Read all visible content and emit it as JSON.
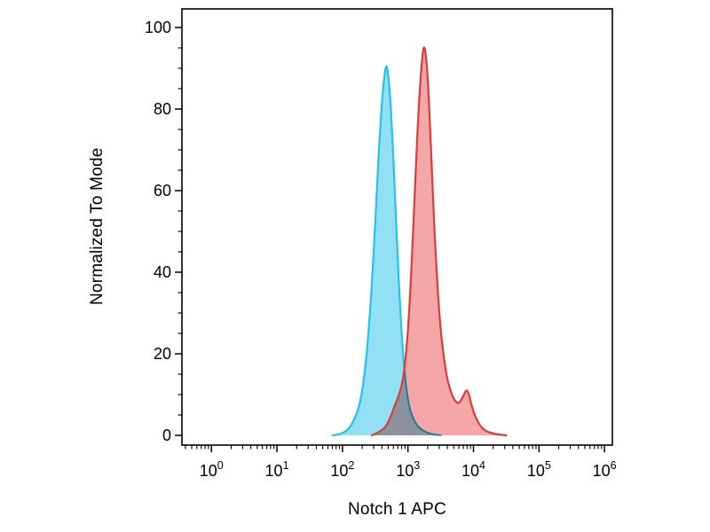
{
  "figure": {
    "background": "#ffffff",
    "description": "Flow cytometry overlay histogram"
  },
  "chart_data": {
    "type": "area",
    "chart_kind": "flow-cytometry-histogram",
    "title": "",
    "xlabel": "Notch 1 APC",
    "ylabel": "Normalized To Mode",
    "x_scale": "log10",
    "xlim_log": [
      -0.45,
      6.12
    ],
    "x_major_tick_exponents": [
      0,
      1,
      2,
      3,
      4,
      5,
      6
    ],
    "x_tick_label_base": "10",
    "ylim": [
      0,
      100
    ],
    "y_major_ticks": [
      0,
      20,
      40,
      60,
      80,
      100
    ],
    "y_minor_step": 5,
    "grid": false,
    "legend": "none",
    "frame_color": "#000000",
    "series": [
      {
        "name": "cyan-control",
        "stroke": "#25c3e8",
        "fill": "#8bdef2",
        "fill_opacity": 0.95,
        "peak": {
          "x_log10": 2.67,
          "x_value": 470,
          "y": 90
        },
        "points_log10x_y": [
          [
            1.85,
            0
          ],
          [
            1.95,
            0.3
          ],
          [
            2.05,
            1
          ],
          [
            2.15,
            3
          ],
          [
            2.25,
            7
          ],
          [
            2.32,
            13
          ],
          [
            2.38,
            22
          ],
          [
            2.44,
            35
          ],
          [
            2.5,
            52
          ],
          [
            2.55,
            68
          ],
          [
            2.6,
            81
          ],
          [
            2.64,
            88
          ],
          [
            2.67,
            90.5
          ],
          [
            2.7,
            88
          ],
          [
            2.74,
            80
          ],
          [
            2.78,
            67
          ],
          [
            2.82,
            52
          ],
          [
            2.86,
            38
          ],
          [
            2.9,
            26
          ],
          [
            2.94,
            17
          ],
          [
            2.98,
            11
          ],
          [
            3.03,
            6.5
          ],
          [
            3.1,
            3.5
          ],
          [
            3.2,
            1.5
          ],
          [
            3.35,
            0.4
          ],
          [
            3.5,
            0
          ]
        ]
      },
      {
        "name": "red-stained",
        "stroke": "#da3b3b",
        "fill": "#f49c9c",
        "fill_opacity": 0.9,
        "blend": "multiply",
        "peak": {
          "x_log10": 3.24,
          "x_value": 1740,
          "y": 95
        },
        "secondary_peak": {
          "x_log10": 3.89,
          "x_value": 7800,
          "y": 11
        },
        "points_log10x_y": [
          [
            2.45,
            0
          ],
          [
            2.55,
            0.8
          ],
          [
            2.65,
            2
          ],
          [
            2.72,
            4
          ],
          [
            2.78,
            6.5
          ],
          [
            2.84,
            9
          ],
          [
            2.9,
            12
          ],
          [
            2.95,
            17
          ],
          [
            3.0,
            26
          ],
          [
            3.05,
            40
          ],
          [
            3.1,
            58
          ],
          [
            3.15,
            76
          ],
          [
            3.2,
            89
          ],
          [
            3.24,
            95
          ],
          [
            3.28,
            92
          ],
          [
            3.32,
            82
          ],
          [
            3.36,
            67
          ],
          [
            3.4,
            52
          ],
          [
            3.45,
            37
          ],
          [
            3.5,
            26
          ],
          [
            3.55,
            19
          ],
          [
            3.6,
            14
          ],
          [
            3.66,
            10.5
          ],
          [
            3.72,
            8.5
          ],
          [
            3.78,
            8
          ],
          [
            3.84,
            9.5
          ],
          [
            3.89,
            11
          ],
          [
            3.93,
            10
          ],
          [
            3.97,
            7.5
          ],
          [
            4.02,
            5
          ],
          [
            4.1,
            2.5
          ],
          [
            4.2,
            1
          ],
          [
            4.35,
            0.3
          ],
          [
            4.5,
            0
          ]
        ]
      }
    ]
  }
}
